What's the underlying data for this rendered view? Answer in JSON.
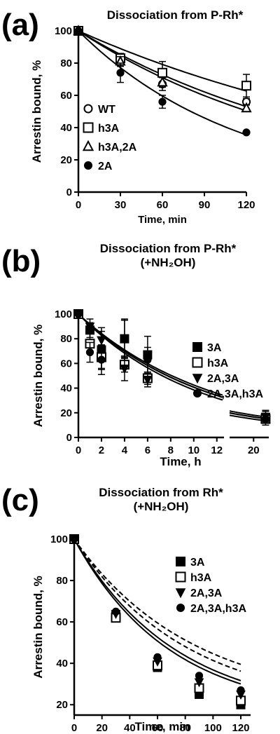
{
  "panels": [
    {
      "letter": "(a)",
      "title_lines": [
        "Dissociation from P-Rh*"
      ],
      "xlabel": "Time, min",
      "ylabel": "Arrestin bound, %",
      "xticks": [
        "0",
        "30",
        "60",
        "90",
        "120"
      ],
      "yticks": [
        "0",
        "20",
        "40",
        "60",
        "80",
        "100"
      ],
      "legend": [
        {
          "label": "WT",
          "marker": "circle-open"
        },
        {
          "label": "h3A",
          "marker": "square-open"
        },
        {
          "label": "h3A,2A",
          "marker": "triangle-open"
        },
        {
          "label": "2A",
          "marker": "circle-filled"
        }
      ]
    },
    {
      "letter": "(b)",
      "title_lines": [
        "Dissociation from P-Rh*",
        "(+NH₂OH)"
      ],
      "xlabel": "Time, h",
      "ylabel": "Arrestin bound, %",
      "xticks": [
        "0",
        "2",
        "4",
        "6",
        "8",
        "10",
        "12",
        "20"
      ],
      "yticks": [
        "0",
        "20",
        "40",
        "60",
        "80",
        "100"
      ],
      "legend": [
        {
          "label": "3A",
          "marker": "square-filled"
        },
        {
          "label": "h3A",
          "marker": "square-open"
        },
        {
          "label": "2A,3A",
          "marker": "triangle-down-filled"
        },
        {
          "label": "2A,3A,h3A",
          "marker": "circle-filled"
        }
      ]
    },
    {
      "letter": "(c)",
      "title_lines": [
        "Dissociation from Rh*",
        "(+NH₂OH)"
      ],
      "xlabel": "Time, min",
      "ylabel": "Arrestin bound, %",
      "xticks": [
        "0",
        "20",
        "40",
        "60",
        "80",
        "100",
        "120"
      ],
      "yticks": [
        "20",
        "40",
        "60",
        "80",
        "100"
      ],
      "legend": [
        {
          "label": "3A",
          "marker": "square-filled"
        },
        {
          "label": "h3A",
          "marker": "square-open"
        },
        {
          "label": "2A,3A",
          "marker": "triangle-down-filled"
        },
        {
          "label": "2A,3A,h3A",
          "marker": "circle-filled"
        }
      ]
    }
  ],
  "chart_data": [
    {
      "type": "scatter",
      "title": "Dissociation from P-Rh*",
      "xlabel": "Time, min",
      "ylabel": "Arrestin bound, %",
      "xlim": [
        0,
        120
      ],
      "ylim": [
        0,
        100
      ],
      "legend_position": "bottom-left",
      "fits": "single exponential decay curve per series",
      "series": [
        {
          "name": "WT",
          "marker": "circle-open",
          "x": [
            0,
            30,
            60,
            120
          ],
          "y": [
            100,
            81,
            67,
            56
          ],
          "err": [
            0,
            3,
            4,
            2
          ]
        },
        {
          "name": "h3A",
          "marker": "square-open",
          "x": [
            0,
            30,
            60,
            120
          ],
          "y": [
            100,
            83,
            74,
            66
          ],
          "err": [
            0,
            3,
            7,
            7
          ]
        },
        {
          "name": "h3A,2A",
          "marker": "triangle-open",
          "x": [
            0,
            30,
            60,
            120
          ],
          "y": [
            100,
            81,
            68,
            52
          ],
          "err": [
            0,
            3,
            3,
            2
          ]
        },
        {
          "name": "2A",
          "marker": "circle-filled",
          "x": [
            0,
            30,
            60,
            120
          ],
          "y": [
            100,
            74,
            56,
            37
          ],
          "err": [
            0,
            6,
            4,
            1
          ]
        }
      ]
    },
    {
      "type": "scatter",
      "title": "Dissociation from P-Rh* (+NH₂OH)",
      "xlabel": "Time, h",
      "ylabel": "Arrestin bound, %",
      "xlim": [
        0,
        21
      ],
      "x_axis_break": [
        12.5,
        18
      ],
      "ylim": [
        0,
        100
      ],
      "legend_position": "top-right",
      "fits": "single exponential decay curve per series",
      "series": [
        {
          "name": "3A",
          "marker": "square-filled",
          "x": [
            0,
            1,
            2,
            4,
            6,
            21
          ],
          "y": [
            100,
            87,
            71,
            80,
            67,
            16
          ],
          "err": [
            0,
            6,
            15,
            16,
            15,
            6
          ]
        },
        {
          "name": "h3A",
          "marker": "square-open",
          "x": [
            0,
            1,
            2,
            4,
            6,
            21
          ],
          "y": [
            100,
            76,
            65,
            59,
            48,
            15
          ],
          "err": [
            0,
            8,
            10,
            6,
            5,
            3
          ]
        },
        {
          "name": "2A,3A",
          "marker": "triangle-down-filled",
          "x": [
            0,
            1,
            2,
            4,
            6,
            21
          ],
          "y": [
            100,
            90,
            79,
            56,
            47,
            17
          ],
          "err": [
            0,
            6,
            10,
            10,
            6,
            4
          ]
        },
        {
          "name": "2A,3A,h3A",
          "marker": "circle-filled",
          "x": [
            0,
            1,
            2,
            4,
            6,
            21
          ],
          "y": [
            100,
            69,
            63,
            80,
            63,
            15
          ],
          "err": [
            0,
            8,
            12,
            15,
            10,
            3
          ]
        }
      ]
    },
    {
      "type": "scatter",
      "title": "Dissociation from Rh* (+NH₂OH)",
      "xlabel": "Time, min",
      "ylabel": "Arrestin bound, %",
      "xlim": [
        0,
        120
      ],
      "ylim": [
        15,
        100
      ],
      "legend_position": "top-right",
      "fits": "exponential decay curves (two solid, two dashed)",
      "series": [
        {
          "name": "3A",
          "marker": "square-filled",
          "x": [
            0,
            30,
            60,
            90,
            120
          ],
          "y": [
            100,
            63,
            38,
            25,
            20
          ]
        },
        {
          "name": "h3A",
          "marker": "square-open",
          "x": [
            0,
            30,
            60,
            90,
            120
          ],
          "y": [
            100,
            62,
            39,
            28,
            22
          ]
        },
        {
          "name": "2A,3A",
          "marker": "triangle-down-filled",
          "x": [
            0,
            30,
            60,
            90,
            120
          ],
          "y": [
            100,
            64,
            41,
            31,
            25
          ]
        },
        {
          "name": "2A,3A,h3A",
          "marker": "circle-filled",
          "x": [
            0,
            30,
            60,
            90,
            120
          ],
          "y": [
            100,
            65,
            43,
            34,
            27
          ]
        }
      ]
    }
  ]
}
